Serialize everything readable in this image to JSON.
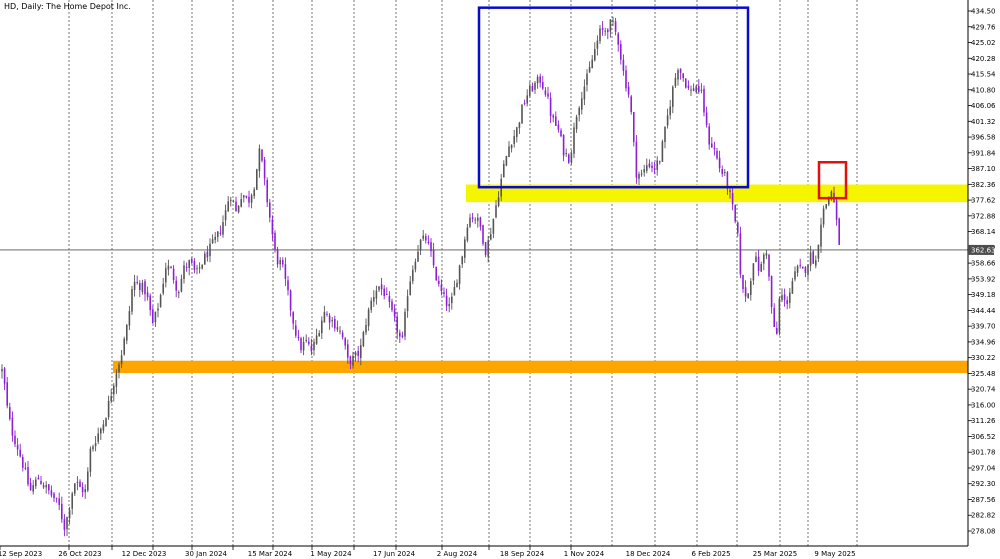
{
  "window": {
    "title": "HD, Daily:  The Home Depot Inc."
  },
  "colors": {
    "bull": "#555555",
    "bear": "#8b1fd1",
    "grid": "#555555",
    "blue_box": "#0a0acc",
    "red_box": "#e31010",
    "yellow_zone": "#f5f500",
    "orange_zone": "#ffa500",
    "current_line": "#555555",
    "current_label_bg": "#4d4d4d"
  },
  "chart_data": {
    "type": "candlestick",
    "symbol": "HD",
    "timeframe": "Daily",
    "instrument": "The Home Depot Inc.",
    "ylim": [
      273.5,
      436.8
    ],
    "y_ticks": [
      "434.50",
      "429.76",
      "425.02",
      "420.28",
      "415.54",
      "410.80",
      "406.06",
      "401.32",
      "396.58",
      "391.84",
      "387.10",
      "382.36",
      "377.62",
      "372.88",
      "368.14",
      "363.40",
      "358.66",
      "353.92",
      "349.18",
      "344.44",
      "339.70",
      "334.96",
      "330.22",
      "325.48",
      "320.74",
      "316.00",
      "311.26",
      "306.52",
      "301.78",
      "297.04",
      "292.30",
      "287.56",
      "282.82",
      "278.08"
    ],
    "x_labels": [
      "12 Sep 2023",
      "26 Oct 2023",
      "12 Dec 2023",
      "30 Jan 2024",
      "15 Mar 2024",
      "1 May 2024",
      "17 Jun 2024",
      "2 Aug 2024",
      "18 Sep 2024",
      "1 Nov 2024",
      "18 Dec 2024",
      "6 Feb 2025",
      "25 Mar 2025",
      "9 May 2025"
    ],
    "current_price": "362.63",
    "price_path": [
      [
        0,
        327
      ],
      [
        3,
        326
      ],
      [
        8,
        313
      ],
      [
        13,
        307
      ],
      [
        18,
        303
      ],
      [
        24,
        297
      ],
      [
        30,
        290
      ],
      [
        38,
        294
      ],
      [
        46,
        291
      ],
      [
        54,
        288
      ],
      [
        60,
        285
      ],
      [
        64,
        279
      ],
      [
        68,
        283
      ],
      [
        74,
        293
      ],
      [
        80,
        291
      ],
      [
        86,
        290
      ],
      [
        90,
        302
      ],
      [
        96,
        306
      ],
      [
        104,
        311
      ],
      [
        110,
        318
      ],
      [
        116,
        326
      ],
      [
        122,
        332
      ],
      [
        128,
        341
      ],
      [
        133,
        353
      ],
      [
        140,
        352
      ],
      [
        146,
        350
      ],
      [
        153,
        340
      ],
      [
        160,
        348
      ],
      [
        166,
        358
      ],
      [
        172,
        356
      ],
      [
        178,
        350
      ],
      [
        184,
        357
      ],
      [
        190,
        359
      ],
      [
        196,
        355
      ],
      [
        204,
        360
      ],
      [
        212,
        364
      ],
      [
        218,
        367
      ],
      [
        224,
        372
      ],
      [
        230,
        380
      ],
      [
        236,
        374
      ],
      [
        242,
        380
      ],
      [
        248,
        377
      ],
      [
        254,
        382
      ],
      [
        260,
        393
      ],
      [
        264,
        384
      ],
      [
        268,
        376
      ],
      [
        272,
        368
      ],
      [
        276,
        360
      ],
      [
        282,
        358
      ],
      [
        288,
        349
      ],
      [
        294,
        340
      ],
      [
        300,
        333
      ],
      [
        306,
        335
      ],
      [
        312,
        332
      ],
      [
        318,
        338
      ],
      [
        324,
        344
      ],
      [
        330,
        342
      ],
      [
        336,
        340
      ],
      [
        342,
        337
      ],
      [
        348,
        329
      ],
      [
        354,
        330
      ],
      [
        360,
        332
      ],
      [
        366,
        341
      ],
      [
        372,
        348
      ],
      [
        378,
        352
      ],
      [
        384,
        350
      ],
      [
        390,
        345
      ],
      [
        396,
        340
      ],
      [
        402,
        334
      ],
      [
        408,
        351
      ],
      [
        414,
        359
      ],
      [
        420,
        365
      ],
      [
        426,
        366
      ],
      [
        432,
        360
      ],
      [
        438,
        352
      ],
      [
        444,
        348
      ],
      [
        450,
        345
      ],
      [
        456,
        353
      ],
      [
        462,
        361
      ],
      [
        468,
        372
      ],
      [
        474,
        373
      ],
      [
        480,
        370
      ],
      [
        486,
        362
      ],
      [
        492,
        370
      ],
      [
        498,
        379
      ],
      [
        504,
        388
      ],
      [
        510,
        395
      ],
      [
        516,
        398
      ],
      [
        522,
        405
      ],
      [
        528,
        410
      ],
      [
        534,
        412
      ],
      [
        540,
        414
      ],
      [
        546,
        410
      ],
      [
        552,
        402
      ],
      [
        558,
        399
      ],
      [
        564,
        392
      ],
      [
        570,
        390
      ],
      [
        576,
        403
      ],
      [
        582,
        410
      ],
      [
        588,
        415
      ],
      [
        594,
        422
      ],
      [
        600,
        428
      ],
      [
        606,
        429
      ],
      [
        612,
        431
      ],
      [
        618,
        426
      ],
      [
        624,
        415
      ],
      [
        630,
        408
      ],
      [
        636,
        386
      ],
      [
        642,
        385
      ],
      [
        648,
        389
      ],
      [
        654,
        387
      ],
      [
        660,
        390
      ],
      [
        666,
        400
      ],
      [
        672,
        410
      ],
      [
        678,
        418
      ],
      [
        684,
        414
      ],
      [
        690,
        410
      ],
      [
        696,
        412
      ],
      [
        702,
        409
      ],
      [
        708,
        396
      ],
      [
        714,
        393
      ],
      [
        720,
        387
      ],
      [
        726,
        384
      ],
      [
        732,
        376
      ],
      [
        738,
        366
      ],
      [
        742,
        350
      ],
      [
        748,
        349
      ],
      [
        754,
        361
      ],
      [
        760,
        356
      ],
      [
        766,
        364
      ],
      [
        772,
        344
      ],
      [
        776,
        334
      ],
      [
        780,
        350
      ],
      [
        786,
        346
      ],
      [
        792,
        353
      ],
      [
        798,
        357
      ],
      [
        804,
        356
      ],
      [
        810,
        361
      ],
      [
        816,
        359
      ],
      [
        820,
        370
      ],
      [
        824,
        375
      ],
      [
        828,
        378
      ],
      [
        832,
        381
      ],
      [
        836,
        372
      ],
      [
        840,
        363
      ]
    ]
  },
  "annotations": {
    "blue_box": {
      "y_low": 381.5,
      "y_high": 435.5
    },
    "red_box": {
      "y_low": 378.2,
      "y_high": 389.0
    },
    "yellow_zone": {
      "y_low": 378.5,
      "y_high": 382.0
    },
    "orange_zone": {
      "y_low": 326.5,
      "y_high": 329.3
    }
  }
}
